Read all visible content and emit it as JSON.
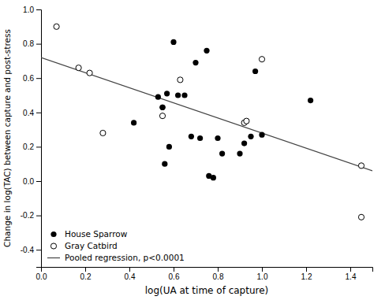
{
  "chart_data": {
    "type": "scatter",
    "xlabel": "log(UA at time of capture)",
    "ylabel": "Change in log(TAC) between capture and post-stress",
    "xlim": [
      0.0,
      1.5
    ],
    "ylim": [
      -0.5,
      1.0
    ],
    "xticks": [
      {
        "value": 0.0,
        "label": "0.0"
      },
      0.2,
      0.4,
      0.6,
      0.8,
      {
        "value": 1.0,
        "label": "1.0"
      },
      1.2,
      1.4
    ],
    "yticks": [
      -0.4,
      -0.2,
      {
        "value": 0.0,
        "label": "0.0"
      },
      0.2,
      0.4,
      0.6,
      0.8,
      {
        "value": 1.0,
        "label": "1.0"
      }
    ],
    "grid": false,
    "legend": "lower left",
    "series": [
      {
        "name": "House Sparrow",
        "type": "scatter",
        "marker": "filled-circle",
        "color": "black",
        "x": [
          0.53,
          0.55,
          0.56,
          0.58,
          0.6,
          0.62,
          0.65,
          0.68,
          0.7,
          0.72,
          0.75,
          0.76,
          0.78,
          0.8,
          0.82,
          0.9,
          0.92,
          0.93,
          0.95,
          0.97,
          1.0,
          1.22,
          0.42,
          0.55,
          0.57
        ],
        "values": [
          0.49,
          0.43,
          0.1,
          0.2,
          0.81,
          0.5,
          0.5,
          0.26,
          0.69,
          0.25,
          0.76,
          0.03,
          0.02,
          0.25,
          0.16,
          0.16,
          0.22,
          0.35,
          0.26,
          0.64,
          0.27,
          0.47,
          0.34,
          0.43,
          0.51
        ]
      },
      {
        "name": "Gray Catbird",
        "type": "scatter",
        "marker": "open-circle",
        "color": "black",
        "x": [
          0.07,
          0.17,
          0.22,
          0.28,
          0.55,
          0.63,
          0.92,
          0.93,
          1.0,
          1.45,
          1.45
        ],
        "values": [
          0.9,
          0.66,
          0.63,
          0.28,
          0.38,
          0.59,
          0.34,
          0.35,
          0.71,
          0.09,
          -0.21
        ]
      },
      {
        "name": "Pooled regression, p<0.0001",
        "type": "line",
        "line_style": "solid",
        "color": "#444444",
        "x": [
          0.0,
          1.5
        ],
        "values": [
          0.72,
          0.06
        ]
      }
    ]
  }
}
